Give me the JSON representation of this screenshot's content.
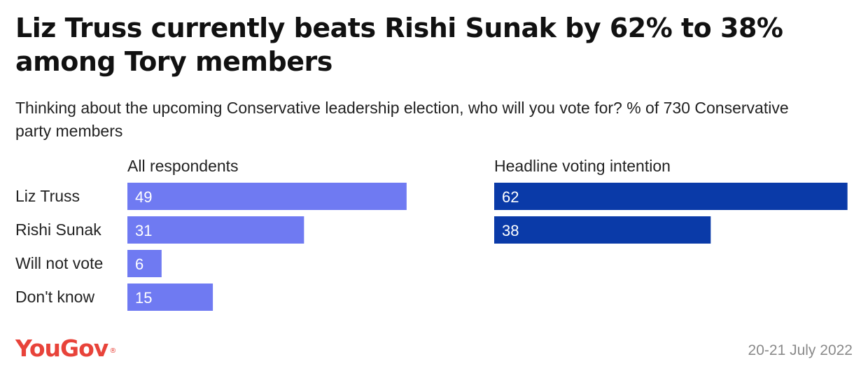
{
  "title": "Liz Truss currently beats Rishi Sunak by 62% to 38% among Tory members",
  "subtitle": "Thinking about the upcoming Conservative leadership election, who will you vote for? % of 730 Conservative party members",
  "footer": {
    "brand": "YouGov",
    "brand_mark": "®",
    "date": "20-21 July 2022"
  },
  "chart_data": [
    {
      "type": "bar",
      "orientation": "horizontal",
      "title": "All respondents",
      "categories": [
        "Liz Truss",
        "Rishi Sunak",
        "Will not vote",
        "Don't know"
      ],
      "values": [
        49,
        31,
        6,
        15
      ],
      "color": "#6f7af2",
      "xlim": [
        0,
        100
      ],
      "grid": false,
      "data_labels": true
    },
    {
      "type": "bar",
      "orientation": "horizontal",
      "title": "Headline voting intention",
      "categories": [
        "Liz Truss",
        "Rishi Sunak"
      ],
      "values": [
        62,
        38
      ],
      "color": "#0a3aa8",
      "xlim": [
        0,
        100
      ],
      "grid": false,
      "data_labels": true
    }
  ]
}
